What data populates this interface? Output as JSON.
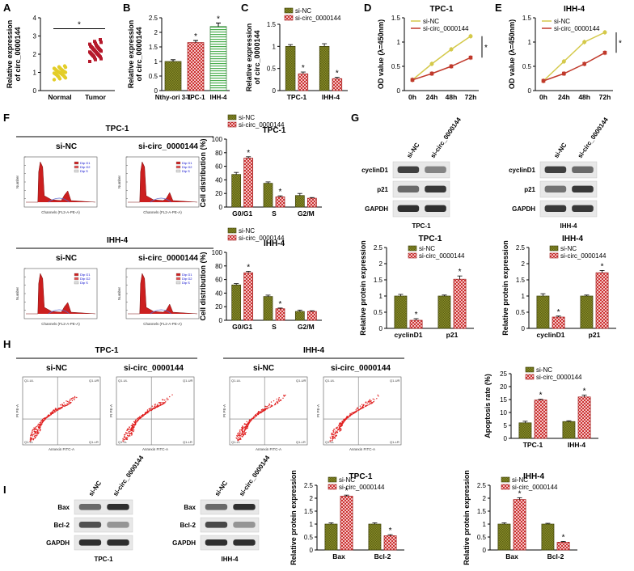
{
  "panel_labels": [
    "A",
    "B",
    "C",
    "D",
    "E",
    "F",
    "G",
    "H",
    "I"
  ],
  "colors": {
    "nc": "#7a7f1f",
    "si": "#d9534f",
    "line_nc": "#d4c94a",
    "line_si": "#c0392b",
    "normal": "#e3cd28",
    "tumor": "#b5192b",
    "ihh_green": "#4caf50"
  },
  "chart_data": [
    {
      "id": "A",
      "type": "scatter",
      "ylabel": "Relative expression of circ_0000144",
      "categories": [
        "Normal",
        "Tumor"
      ],
      "ylim": [
        0,
        4
      ],
      "yticks": [
        0,
        1,
        2,
        3,
        4
      ],
      "series": [
        {
          "values": [
            0.6,
            0.65,
            0.7,
            0.72,
            0.75,
            0.78,
            0.8,
            0.82,
            0.85,
            0.87,
            0.88,
            0.9,
            0.92,
            0.93,
            0.95,
            0.96,
            0.98,
            1.0,
            1.0,
            1.02,
            1.04,
            1.05,
            1.07,
            1.08,
            1.1,
            1.12,
            1.14,
            1.16,
            1.18,
            1.2,
            1.22,
            1.25,
            1.28,
            1.3,
            1.35
          ]
        },
        {
          "values": [
            1.6,
            1.7,
            1.75,
            1.8,
            1.85,
            1.88,
            1.9,
            1.92,
            1.95,
            1.97,
            2.0,
            2.02,
            2.05,
            2.07,
            2.1,
            2.12,
            2.15,
            2.17,
            2.2,
            2.22,
            2.25,
            2.27,
            2.3,
            2.32,
            2.35,
            2.38,
            2.4,
            2.42,
            2.45,
            2.5,
            2.55,
            2.6,
            2.65,
            2.7,
            2.8
          ]
        }
      ],
      "annotation": "*"
    },
    {
      "id": "B",
      "type": "bar",
      "ylabel": "Relative expression of circ_0000144",
      "categories": [
        "Nthy-ori 3-1",
        "TPC-1",
        "IHH-4"
      ],
      "values": [
        1.0,
        1.65,
        2.2
      ],
      "errors": [
        0.06,
        0.07,
        0.12
      ],
      "ylim": [
        0,
        2.5
      ],
      "yticks": [
        0,
        0.5,
        1.0,
        1.5,
        2.0,
        2.5
      ],
      "stars": [
        "",
        "*",
        "*"
      ]
    },
    {
      "id": "C",
      "type": "bar",
      "ylabel": "Relative expression of circ_0000144",
      "categories": [
        "TPC-1",
        "IHH-4"
      ],
      "series": [
        {
          "name": "si-NC",
          "values": [
            1.0,
            1.0
          ],
          "errors": [
            0.04,
            0.06
          ]
        },
        {
          "name": "si-circ_0000144",
          "values": [
            0.38,
            0.27
          ],
          "errors": [
            0.04,
            0.03
          ]
        }
      ],
      "ylim": [
        0,
        1.5
      ],
      "yticks": [
        0,
        0.5,
        1.0,
        1.5
      ],
      "stars": [
        "*",
        "*"
      ]
    },
    {
      "id": "D",
      "type": "line",
      "title": "TPC-1",
      "ylabel": "OD value (λ=450nm)",
      "x": [
        "0h",
        "24h",
        "48h",
        "72h"
      ],
      "series": [
        {
          "name": "si-NC",
          "values": [
            0.22,
            0.55,
            0.85,
            1.12
          ]
        },
        {
          "name": "si-circ_0000144",
          "values": [
            0.22,
            0.35,
            0.5,
            0.68
          ]
        }
      ],
      "ylim": [
        0,
        1.5
      ],
      "yticks": [
        0,
        0.5,
        1.0,
        1.5
      ],
      "annotation": "*"
    },
    {
      "id": "E",
      "type": "line",
      "title": "IHH-4",
      "ylabel": "OD value (λ=450nm)",
      "x": [
        "0h",
        "24h",
        "48h",
        "72h"
      ],
      "series": [
        {
          "name": "si-NC",
          "values": [
            0.2,
            0.6,
            1.0,
            1.2
          ]
        },
        {
          "name": "si-circ_0000144",
          "values": [
            0.2,
            0.35,
            0.55,
            0.78
          ]
        }
      ],
      "ylim": [
        0,
        1.5
      ],
      "yticks": [
        0,
        0.5,
        1.0,
        1.5
      ],
      "annotation": "*"
    },
    {
      "id": "F1",
      "type": "bar",
      "title": "TPC-1",
      "ylabel": "Cell distribution (%)",
      "categories": [
        "G0/G1",
        "S",
        "G2/M"
      ],
      "series": [
        {
          "name": "si-NC",
          "values": [
            48,
            35,
            17
          ],
          "errors": [
            3,
            2,
            3
          ]
        },
        {
          "name": "si-circ_0000144",
          "values": [
            72,
            15,
            13
          ],
          "errors": [
            2,
            1.5,
            1
          ]
        }
      ],
      "ylim": [
        0,
        100
      ],
      "yticks": [
        0,
        20,
        40,
        60,
        80,
        100
      ],
      "stars": [
        "*",
        "*",
        ""
      ]
    },
    {
      "id": "F2",
      "type": "bar",
      "title": "IHH-4",
      "ylabel": "Cell distribution (%)",
      "categories": [
        "G0/G1",
        "S",
        "G2/M"
      ],
      "series": [
        {
          "name": "si-NC",
          "values": [
            52,
            35,
            13
          ],
          "errors": [
            2,
            2,
            2
          ]
        },
        {
          "name": "si-circ_0000144",
          "values": [
            70,
            17,
            13
          ],
          "errors": [
            2,
            1,
            1
          ]
        }
      ],
      "ylim": [
        0,
        100
      ],
      "yticks": [
        0,
        20,
        40,
        60,
        80,
        100
      ],
      "stars": [
        "*",
        "*",
        ""
      ]
    },
    {
      "id": "G1",
      "type": "bar",
      "title": "TPC-1",
      "ylabel": "Relative protein expression",
      "categories": [
        "cyclinD1",
        "p21"
      ],
      "series": [
        {
          "name": "si-NC",
          "values": [
            1.0,
            1.0
          ],
          "errors": [
            0.05,
            0.03
          ]
        },
        {
          "name": "si-circ_0000144",
          "values": [
            0.25,
            1.52
          ],
          "errors": [
            0.05,
            0.1
          ]
        }
      ],
      "ylim": [
        0,
        2.5
      ],
      "yticks": [
        0,
        0.5,
        1.0,
        1.5,
        2.0,
        2.5
      ],
      "stars": [
        "*",
        "*"
      ]
    },
    {
      "id": "G2",
      "type": "bar",
      "title": "IHH-4",
      "ylabel": "Relative protein expression",
      "categories": [
        "cyclinD1",
        "p21"
      ],
      "series": [
        {
          "name": "si-NC",
          "values": [
            1.0,
            1.0
          ],
          "errors": [
            0.07,
            0.03
          ]
        },
        {
          "name": "si-circ_0000144",
          "values": [
            0.35,
            1.72
          ],
          "errors": [
            0.03,
            0.07
          ]
        }
      ],
      "ylim": [
        0,
        2.5
      ],
      "yticks": [
        0,
        0.5,
        1.0,
        1.5,
        2.0,
        2.5
      ],
      "stars": [
        "*",
        "*"
      ]
    },
    {
      "id": "H",
      "type": "bar",
      "ylabel": "Apoptosis rate (%)",
      "categories": [
        "TPC-1",
        "IHH-4"
      ],
      "series": [
        {
          "name": "si-NC",
          "values": [
            6,
            6.5
          ],
          "errors": [
            0.6,
            0.3
          ]
        },
        {
          "name": "si-circ_0000144",
          "values": [
            14.8,
            16
          ],
          "errors": [
            0.3,
            0.7
          ]
        }
      ],
      "ylim": [
        0,
        25
      ],
      "yticks": [
        0,
        5,
        10,
        15,
        20,
        25
      ],
      "stars": [
        "*",
        "*"
      ]
    },
    {
      "id": "I1",
      "type": "bar",
      "title": "TPC-1",
      "ylabel": "Relative protein expression",
      "categories": [
        "Bax",
        "Bcl-2"
      ],
      "series": [
        {
          "name": "si-NC",
          "values": [
            1.0,
            1.0
          ],
          "errors": [
            0.05,
            0.05
          ]
        },
        {
          "name": "si-circ_0000144",
          "values": [
            2.08,
            0.55
          ],
          "errors": [
            0.04,
            0.04
          ]
        }
      ],
      "ylim": [
        0,
        2.5
      ],
      "yticks": [
        0,
        0.5,
        1.0,
        1.5,
        2.0,
        2.5
      ],
      "stars": [
        "*",
        "*"
      ]
    },
    {
      "id": "I2",
      "type": "bar",
      "title": "IHH-4",
      "ylabel": "Relative protein expression",
      "categories": [
        "Bax",
        "Bcl-2"
      ],
      "series": [
        {
          "name": "si-NC",
          "values": [
            1.0,
            1.0
          ],
          "errors": [
            0.05,
            0.03
          ]
        },
        {
          "name": "si-circ_0000144",
          "values": [
            1.95,
            0.3
          ],
          "errors": [
            0.07,
            0.03
          ]
        }
      ],
      "ylim": [
        0,
        2.5
      ],
      "yticks": [
        0,
        0.5,
        1.0,
        1.5,
        2.0,
        2.5
      ],
      "stars": [
        "*",
        "*"
      ]
    }
  ],
  "flow_F": {
    "rows": [
      {
        "title": "TPC-1",
        "left": "si-NC",
        "right": "si-circ_0000144"
      },
      {
        "title": "IHH-4",
        "left": "si-NC",
        "right": "si-circ_0000144"
      }
    ],
    "ylabel": "Number",
    "xlabel": "Channels (FL2-A-PE-A)",
    "legend": [
      "Dip G1",
      "Dip G2",
      "Dip S"
    ]
  },
  "flow_H": {
    "groups": [
      {
        "title": "TPC-1",
        "left": "si-NC",
        "right": "si-circ_0000144"
      },
      {
        "title": "IHH-4",
        "left": "si-NC",
        "right": "si-circ_0000144"
      }
    ],
    "xlabel": "Annexin FITC-A",
    "ylabel": "PI PE-A",
    "quadrants": [
      "Q1-UL",
      "Q1-UR",
      "Q1-LL",
      "Q1-LR"
    ]
  },
  "blots_G": [
    {
      "cell": "TPC-1",
      "lanes": [
        "si-NC",
        "si-circ_0000144"
      ],
      "proteins": [
        "cyclinD1",
        "p21",
        "GAPDH"
      ]
    },
    {
      "cell": "IHH-4",
      "lanes": [
        "si-NC",
        "si-circ_0000144"
      ],
      "proteins": [
        "cyclinD1",
        "p21",
        "GAPDH"
      ]
    }
  ],
  "blots_I": [
    {
      "cell": "TPC-1",
      "lanes": [
        "si-NC",
        "si-circ_0000144"
      ],
      "proteins": [
        "Bax",
        "Bcl-2",
        "GAPDH"
      ]
    },
    {
      "cell": "IHH-4",
      "lanes": [
        "si-NC",
        "si-circ_0000144"
      ],
      "proteins": [
        "Bax",
        "Bcl-2",
        "GAPDH"
      ]
    }
  ]
}
